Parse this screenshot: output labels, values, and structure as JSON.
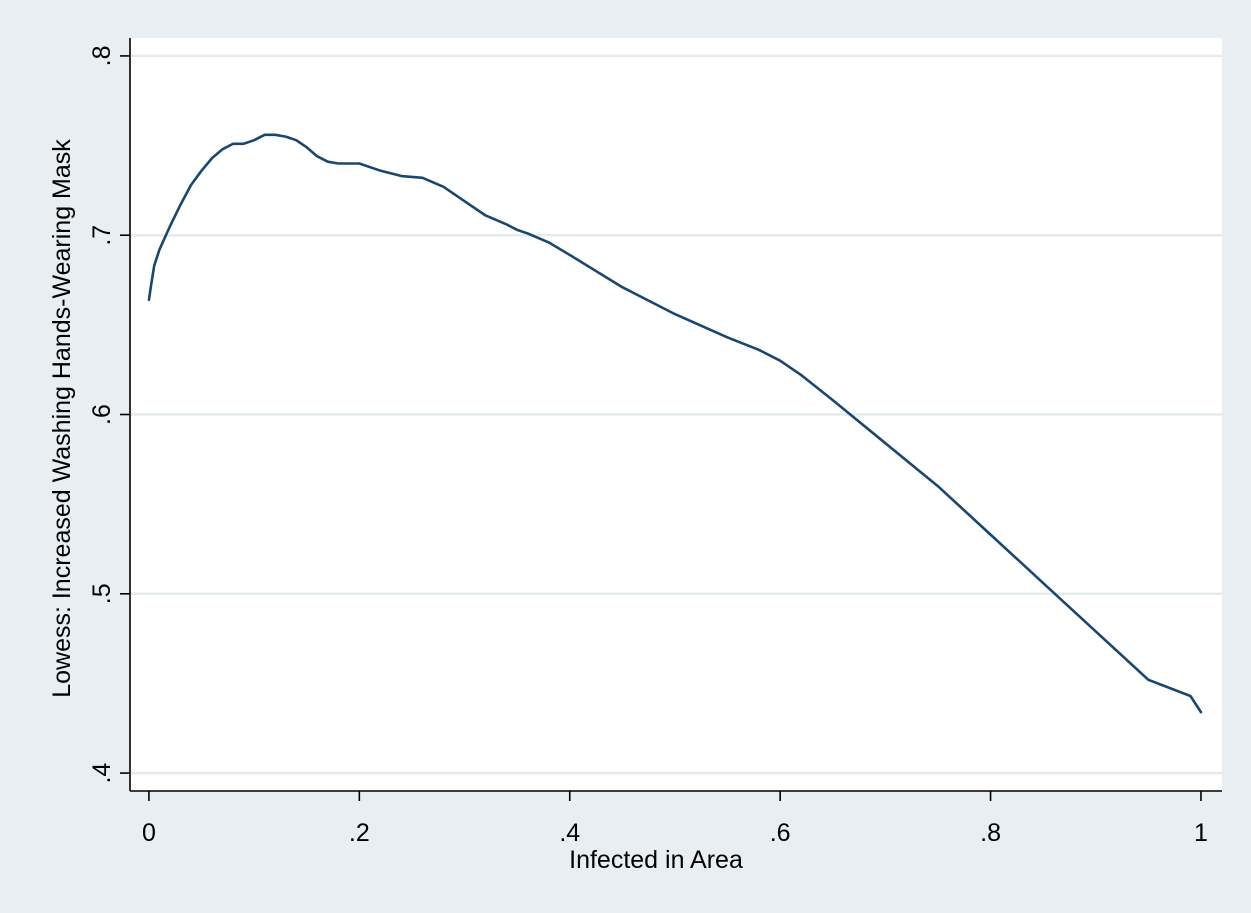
{
  "chart_data": {
    "type": "line",
    "title": "",
    "xlabel": "Infected in Area",
    "ylabel": "Lowess: Increased Washing Hands-Wearing Mask",
    "xlim": [
      -0.018,
      1.02
    ],
    "ylim": [
      0.39,
      0.81
    ],
    "x_ticks": [
      0,
      0.2,
      0.4,
      0.6,
      0.8,
      1.0
    ],
    "x_tick_labels": [
      "0",
      ".2",
      ".4",
      ".6",
      ".8",
      "1"
    ],
    "y_ticks": [
      0.4,
      0.5,
      0.6,
      0.7,
      0.8
    ],
    "y_tick_labels": [
      ".4",
      ".5",
      ".6",
      ".7",
      ".8"
    ],
    "grid": "horizontal",
    "colors": {
      "background": "#e8eef2",
      "plot_area": "#ffffff",
      "grid": "#e3ebef",
      "line": "#1a476f",
      "axis": "#000000"
    },
    "series": [
      {
        "x": [
          0,
          0.002,
          0.005,
          0.01,
          0.02,
          0.03,
          0.04,
          0.05,
          0.06,
          0.07,
          0.08,
          0.09,
          0.1,
          0.11,
          0.12,
          0.13,
          0.14,
          0.15,
          0.16,
          0.17,
          0.18,
          0.2,
          0.22,
          0.24,
          0.26,
          0.28,
          0.3,
          0.32,
          0.34,
          0.35,
          0.36,
          0.38,
          0.4,
          0.45,
          0.5,
          0.55,
          0.58,
          0.6,
          0.62,
          0.65,
          0.7,
          0.75,
          0.8,
          0.85,
          0.9,
          0.95,
          0.99,
          1.0
        ],
        "y": [
          0.664,
          0.672,
          0.683,
          0.692,
          0.705,
          0.717,
          0.728,
          0.736,
          0.743,
          0.748,
          0.751,
          0.751,
          0.753,
          0.756,
          0.756,
          0.755,
          0.753,
          0.749,
          0.744,
          0.741,
          0.74,
          0.74,
          0.736,
          0.733,
          0.732,
          0.727,
          0.719,
          0.711,
          0.706,
          0.703,
          0.701,
          0.696,
          0.689,
          0.671,
          0.656,
          0.643,
          0.636,
          0.63,
          0.622,
          0.608,
          0.584,
          0.56,
          0.533,
          0.506,
          0.479,
          0.452,
          0.443,
          0.434
        ]
      }
    ]
  }
}
